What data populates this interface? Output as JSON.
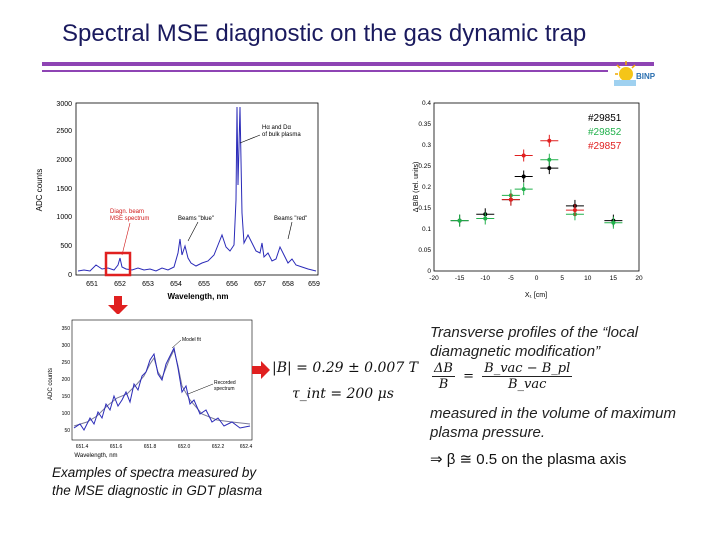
{
  "header": {
    "title": "Spectral MSE diagnostic on the gas dynamic trap",
    "logo_text": "BINP"
  },
  "spectrum_main": {
    "y_axis_label": "ADC counts",
    "x_axis_label": "Wavelength, nm",
    "y_ticks": [
      "0",
      "500",
      "1000",
      "1500",
      "2000",
      "2500",
      "3000"
    ],
    "x_ticks": [
      "651",
      "652",
      "653",
      "654",
      "655",
      "656",
      "657",
      "658",
      "659"
    ],
    "annot_halpha": "Hα and Dα",
    "annot_bulk": "of bulk plasma",
    "annot_diagn_1": "Diagn. beam",
    "annot_diagn_2": "MSE spectrum",
    "annot_blue": "Beams \"blue\"",
    "annot_red": "Beams \"red\""
  },
  "spectrum_zoom": {
    "y_axis_label": "ADC counts",
    "x_axis_label": "Wavelength, nm",
    "y_ticks": [
      "50",
      "100",
      "150",
      "200",
      "250",
      "300",
      "350"
    ],
    "x_ticks": [
      "651.4",
      "651.6",
      "651.8",
      "652.0",
      "652.2",
      "652.4"
    ],
    "annot_model": "Model fit",
    "annot_recorded_1": "Recorded",
    "annot_recorded_2": "spectrum"
  },
  "formula": {
    "B": "|B| = 0.29 ± 0.007 T",
    "tau": "τ_int = 200 μs"
  },
  "profile_chart": {
    "legend": [
      "#29851",
      "#29852",
      "#29857"
    ],
    "y_axis_label": "Δ B/B (rel. units)",
    "x_axis_label": "X₁ [cm]",
    "y_ticks": [
      "0",
      "0.05",
      "0.1",
      "0.15",
      "0.2",
      "0.25",
      "0.3",
      "0.35",
      "0.4"
    ],
    "x_ticks": [
      "-20",
      "-15",
      "-10",
      "-5",
      "0",
      "5",
      "10",
      "15",
      "20"
    ]
  },
  "chart_data": {
    "type": "scatter",
    "x": [
      -15,
      -10,
      -5,
      0,
      5,
      10,
      15
    ],
    "xlabel": "X₁ [cm]",
    "ylabel": "Δ B/B (rel. units)",
    "xlim": [
      -20,
      20
    ],
    "ylim": [
      0,
      0.4
    ],
    "grid": false,
    "legend_position": "top-right",
    "series": [
      {
        "name": "#29851",
        "color": "#000000",
        "x": [
          -15,
          -10,
          -5,
          -2.5,
          2.5,
          7.5,
          15
        ],
        "values": [
          0.12,
          0.135,
          0.17,
          0.225,
          0.245,
          0.155,
          0.12
        ]
      },
      {
        "name": "#29852",
        "color": "#22b14c",
        "x": [
          -15,
          -10,
          -5,
          -2.5,
          2.5,
          7.5,
          15
        ],
        "values": [
          0.12,
          0.125,
          0.18,
          0.195,
          0.265,
          0.135,
          0.115
        ]
      },
      {
        "name": "#29857",
        "color": "#e02020",
        "x": [
          -5,
          -2.5,
          2.5,
          7.5
        ],
        "values": [
          0.17,
          0.275,
          0.31,
          0.145
        ]
      }
    ]
  },
  "description": {
    "line1": "Transverse profiles of the “local",
    "line2": "diamagnetic modification”",
    "frac_lhs_num": "ΔB",
    "frac_lhs_den": "B",
    "frac_rhs_num": "B_vac − B_pl",
    "frac_rhs_den": "B_vac",
    "frac_eq": "=",
    "measured_1": "measured in the volume of maximum",
    "measured_2": "plasma pressure.",
    "beta_line": "⇒  β ≅ 0.5 on the plasma axis"
  },
  "caption": {
    "line1": "Examples of spectra measured by",
    "line2": "the MSE diagnostic in GDT plasma"
  }
}
